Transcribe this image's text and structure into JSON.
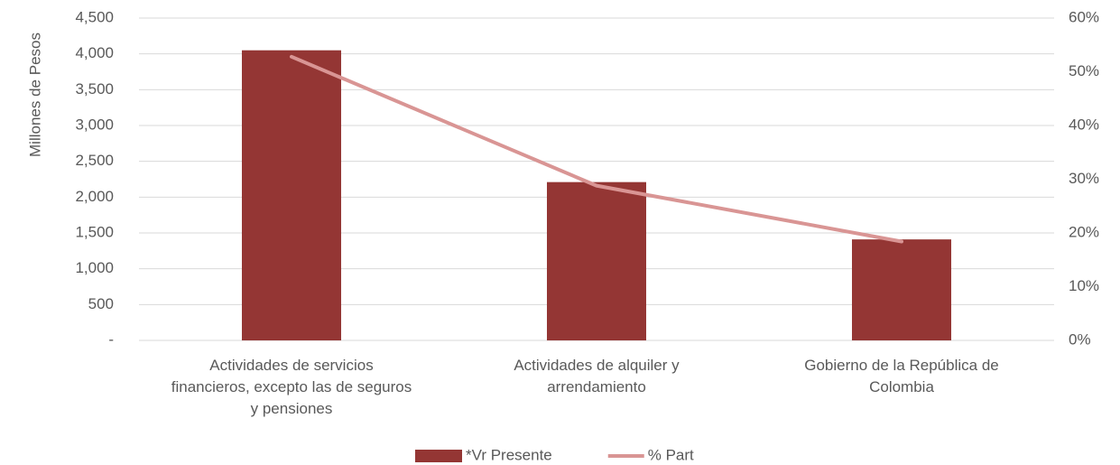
{
  "chart_data": {
    "type": "bar",
    "y_axis_label": "Millones de Pesos",
    "categories": [
      "Actividades de servicios financieros, excepto las de seguros y pensiones",
      "Actividades de alquiler y arrendamiento",
      "Gobierno de la República de Colombia"
    ],
    "series": [
      {
        "name": "*Vr Presente",
        "type": "bar",
        "color": "#943634",
        "values": [
          4050,
          2210,
          1410
        ]
      },
      {
        "name": "% Part",
        "type": "line",
        "axis": "y2",
        "color": "#d99594",
        "values": [
          52.8,
          28.8,
          18.4
        ]
      }
    ],
    "ylim": [
      0,
      4500
    ],
    "yticks": [
      {
        "value": 0,
        "label": "-"
      },
      500,
      {
        "value": 1000,
        "label": "1,000"
      },
      {
        "value": 1500,
        "label": "1,500"
      },
      {
        "value": 2000,
        "label": "2,000"
      },
      {
        "value": 2500,
        "label": "2,500"
      },
      {
        "value": 3000,
        "label": "3,000"
      },
      {
        "value": 3500,
        "label": "3,500"
      },
      {
        "value": 4000,
        "label": "4,000"
      },
      {
        "value": 4500,
        "label": "4,500"
      }
    ],
    "y2lim": [
      0,
      60
    ],
    "y2ticks": [
      {
        "value": 0,
        "label": "0%"
      },
      {
        "value": 10,
        "label": "10%"
      },
      {
        "value": 20,
        "label": "20%"
      },
      {
        "value": 30,
        "label": "30%"
      },
      {
        "value": 40,
        "label": "40%"
      },
      {
        "value": 50,
        "label": "50%"
      },
      {
        "value": 60,
        "label": "60%"
      }
    ],
    "grid": true,
    "legend": "bottom"
  }
}
